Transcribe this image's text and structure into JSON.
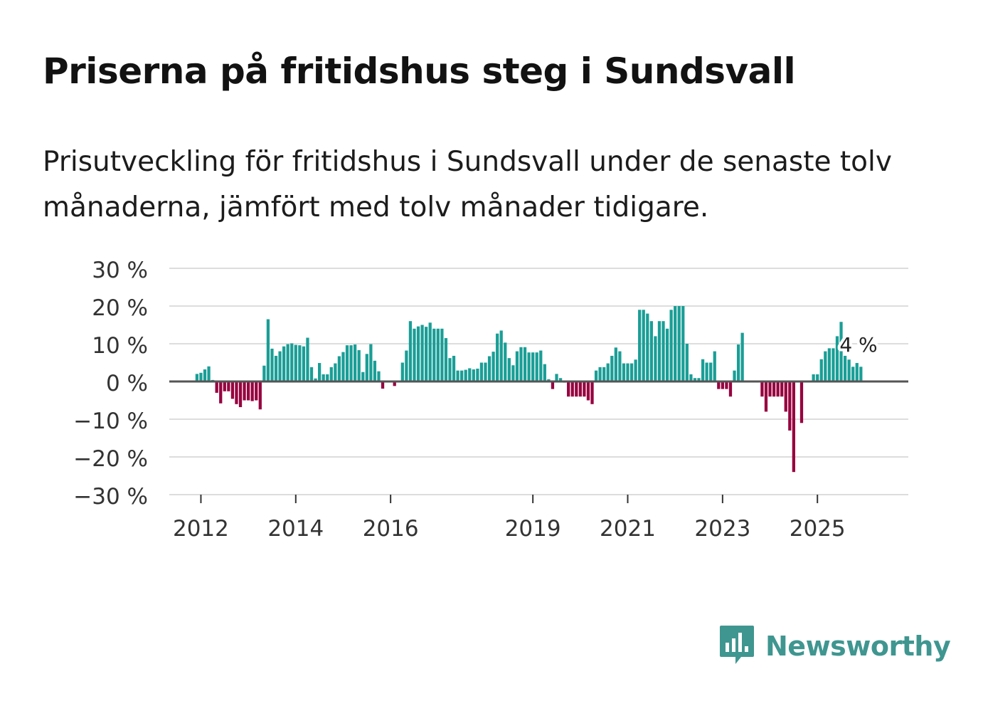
{
  "header": {
    "title": "Priserna på fritidshus steg i Sundsvall",
    "subtitle": "Prisutveckling för fritidshus i Sundsvall under de senaste tolv månaderna, jämfört med tolv månader tidigare."
  },
  "brand": {
    "name": "Newsworthy"
  },
  "colors": {
    "positive": "#1a9e96",
    "negative": "#97003f",
    "grid": "#dddddd",
    "zero": "#555555",
    "text": "#333333"
  },
  "chart_data": {
    "type": "bar",
    "title": "Priserna på fritidshus steg i Sundsvall",
    "subtitle": "Prisutveckling för fritidshus i Sundsvall under de senaste tolv månaderna, jämfört med tolv månader tidigare.",
    "xlabel": "",
    "ylabel": "",
    "ylim": [
      -30,
      30
    ],
    "y_ticks": [
      30,
      20,
      10,
      0,
      -10,
      -20,
      -30
    ],
    "y_tick_labels": [
      "30 %",
      "20 %",
      "10 %",
      "0 %",
      "−10 %",
      "−20 %",
      "−30 %"
    ],
    "x_ticks": [
      {
        "year": 2012,
        "label": "2012"
      },
      {
        "year": 2014,
        "label": "2014"
      },
      {
        "year": 2016,
        "label": "2016"
      },
      {
        "year": 2019,
        "label": "2019"
      },
      {
        "year": 2021,
        "label": "2021"
      },
      {
        "year": 2023,
        "label": "2023"
      },
      {
        "year": 2025,
        "label": "2025"
      }
    ],
    "x_start": {
      "year": 2011,
      "month": 5
    },
    "x_end": {
      "year": 2026,
      "month": 12
    },
    "first_bar": {
      "year": 2011,
      "month": 12
    },
    "frequency": "monthly",
    "units": "%",
    "values": [
      2,
      2.3,
      3.2,
      4,
      0.4,
      -3,
      -5.8,
      -2.6,
      -2.6,
      -4.6,
      -6,
      -6.8,
      -5,
      -5,
      -5.2,
      -5,
      -7.4,
      4.2,
      16.5,
      8.7,
      6.8,
      8,
      9.3,
      9.9,
      10.1,
      9.7,
      9.6,
      9.3,
      11.6,
      3.8,
      0.8,
      4.9,
      1.9,
      1.9,
      3.8,
      4.8,
      6.7,
      7.8,
      9.6,
      9.6,
      9.8,
      8.3,
      2.5,
      7.3,
      9.9,
      5.5,
      2.7,
      -1.9,
      0,
      0,
      -1.2,
      0,
      5,
      8.2,
      16,
      14,
      14.6,
      15,
      14.5,
      15.6,
      14,
      14,
      14,
      11.5,
      6.2,
      6.8,
      2.9,
      2.9,
      3.1,
      3.5,
      3.2,
      3.4,
      5,
      5,
      6.7,
      7.9,
      12.7,
      13.5,
      10.3,
      6.2,
      4.3,
      8,
      9.1,
      9.1,
      7.7,
      7.7,
      7.7,
      8.2,
      4.6,
      0.6,
      -2,
      2,
      0.9,
      -0.3,
      -4,
      -4,
      -4,
      -4,
      -4,
      -5,
      -6,
      2.9,
      3.8,
      3.8,
      4.8,
      6.8,
      9,
      8,
      4.8,
      4.8,
      4.8,
      5.8,
      19,
      19,
      18,
      16,
      12,
      16,
      16,
      14,
      19,
      20,
      20,
      20,
      10,
      1.9,
      0.9,
      0.9,
      5.9,
      5,
      5,
      8,
      -2,
      -2,
      -2,
      -4,
      2.9,
      9.8,
      12.9,
      0,
      0,
      0,
      0,
      -4,
      -8,
      -4,
      -4,
      -4,
      -4,
      -8,
      -13,
      -24,
      0,
      -11,
      0,
      0,
      1.9,
      1.9,
      5.9,
      8,
      8.8,
      8.8,
      12,
      15.8,
      6.8,
      5.8,
      3.9,
      4.9,
      3.9
    ],
    "last_value_label": "4 %",
    "legend": "none"
  }
}
